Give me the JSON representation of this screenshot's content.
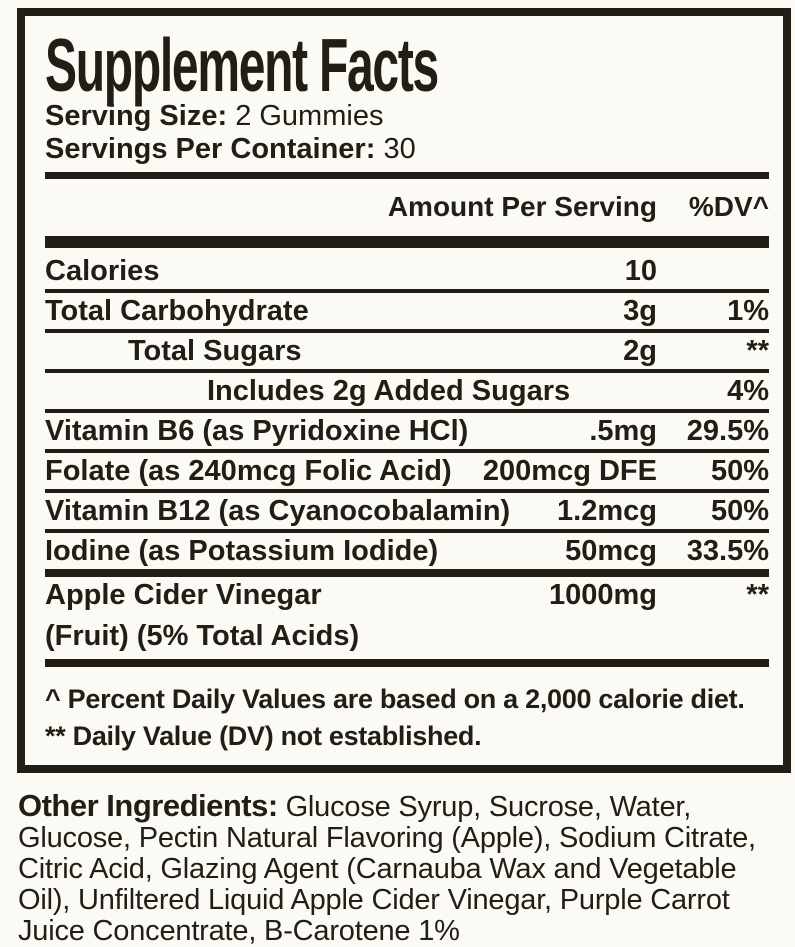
{
  "colors": {
    "ink": "#211e16",
    "background": "#fbfaf4"
  },
  "panel": {
    "title": "Supplement Facts",
    "serving_size_label": "Serving Size:",
    "serving_size_value": "2 Gummies",
    "servings_per_container_label": "Servings Per Container:",
    "servings_per_container_value": "30",
    "header": {
      "amount": "Amount Per Serving",
      "dv": "%DV^"
    },
    "rows": [
      {
        "name": "Calories",
        "amount": "10",
        "dv": ""
      },
      {
        "name": "Total Carbohydrate",
        "amount": "3g",
        "dv": "1%"
      },
      {
        "name": "Total Sugars",
        "amount": "2g",
        "dv": "**"
      },
      {
        "name": "Includes 2g Added Sugars",
        "amount": "",
        "dv": "4%"
      },
      {
        "name": "Vitamin B6 (as Pyridoxine HCl)",
        "amount": ".5mg",
        "dv": "29.5%"
      },
      {
        "name": "Folate (as 240mcg Folic Acid)",
        "amount": "200mcg DFE",
        "dv": "50%"
      },
      {
        "name": "Vitamin B12 (as Cyanocobalamin)",
        "amount": "1.2mcg",
        "dv": "50%"
      },
      {
        "name": "Iodine (as Potassium Iodide)",
        "amount": "50mcg",
        "dv": "33.5%"
      },
      {
        "name": "Apple Cider Vinegar",
        "name2": "(Fruit) (5% Total Acids)",
        "amount": "1000mg",
        "dv": "**"
      }
    ],
    "footnotes": [
      "^ Percent Daily Values are based on a 2,000 calorie diet.",
      "** Daily Value (DV) not established."
    ]
  },
  "other_ingredients": {
    "label": "Other Ingredients:",
    "text": "Glucose Syrup, Sucrose, Water, Glucose, Pectin Natural Flavoring (Apple), Sodium Citrate, Citric Acid, Glazing Agent (Carnauba Wax and Vegetable Oil), Unfiltered Liquid Apple Cider Vinegar, Purple Carrot Juice Concentrate, B-Carotene 1%"
  }
}
